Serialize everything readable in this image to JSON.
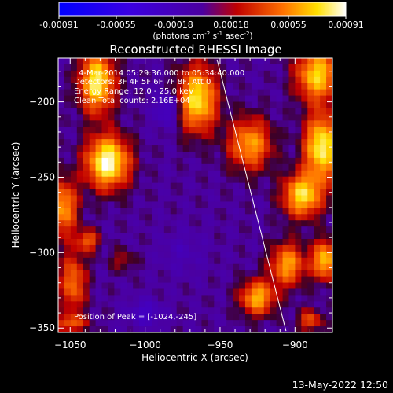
{
  "colorbar": {
    "ticks": [
      "-0.00091",
      "-0.00055",
      "-0.00018",
      "0.00018",
      "0.00055",
      "0.00091"
    ],
    "units_prefix": "(photons cm",
    "units_exp1": "-2",
    "units_mid": " s",
    "units_exp2": "-1",
    "units_asec": " asec",
    "units_exp3": "-2",
    "units_suffix": ")"
  },
  "info": {
    "time": "4-Mar-2014 05:29:36.000 to 05:34:40.000",
    "detectors": "Detectors: 3F 4F 5F 6F 7F 8F, Att 0",
    "energy": "Energy Range: 12.0 - 25.0 keV",
    "clean": "Clean    Total counts: 2.16E+04",
    "peak": "Position of Peak = [-1024,-245]"
  },
  "footer": {
    "timestamp": "13-May-2022 12:50"
  },
  "colors": {
    "background": "#000000",
    "foreground": "#ffffff",
    "negative_max": "#0000ff",
    "zero": "#4b00a0",
    "positive_max": "#ffffff"
  },
  "chart_data": {
    "type": "heatmap",
    "title": "Reconstructed RHESSI Image",
    "xlabel": "Heliocentric X (arcsec)",
    "ylabel": "Heliocentric Y (arcsec)",
    "xlim": [
      -1058,
      -875
    ],
    "ylim": [
      -353,
      -171
    ],
    "xticks": [
      -1050,
      -1000,
      -950,
      -900
    ],
    "yticks": [
      -350,
      -300,
      -250,
      -200
    ],
    "xtick_labels": [
      "−1050",
      "−1000",
      "−950",
      "−900"
    ],
    "ytick_labels": [
      "−350",
      "−300",
      "−250",
      "−200"
    ],
    "colorbar_range": [
      -0.00091,
      0.00091
    ],
    "limb_line": [
      [
        -952,
        -172
      ],
      [
        -906,
        -352
      ]
    ],
    "peak_position": [
      -1024,
      -245
    ],
    "sources": [
      {
        "x": -1032,
        "y": -187,
        "sx": 8,
        "sy": 14,
        "a": 0.00082
      },
      {
        "x": -1025,
        "y": -240,
        "sx": 10,
        "sy": 12,
        "a": 0.00091
      },
      {
        "x": -1055,
        "y": -270,
        "sx": 7,
        "sy": 13,
        "a": 0.0006
      },
      {
        "x": -1048,
        "y": -320,
        "sx": 6,
        "sy": 14,
        "a": 0.0005
      },
      {
        "x": -1038,
        "y": -292,
        "sx": 5,
        "sy": 5,
        "a": 0.00045
      },
      {
        "x": -1050,
        "y": -347,
        "sx": 8,
        "sy": 4,
        "a": 0.0004
      },
      {
        "x": -965,
        "y": -198,
        "sx": 9,
        "sy": 15,
        "a": 0.00078
      },
      {
        "x": -930,
        "y": -228,
        "sx": 10,
        "sy": 12,
        "a": 0.0006
      },
      {
        "x": -885,
        "y": -182,
        "sx": 10,
        "sy": 12,
        "a": 0.00072
      },
      {
        "x": -882,
        "y": -230,
        "sx": 8,
        "sy": 15,
        "a": 0.00085
      },
      {
        "x": -895,
        "y": -262,
        "sx": 9,
        "sy": 10,
        "a": 0.00075
      },
      {
        "x": -905,
        "y": -308,
        "sx": 8,
        "sy": 10,
        "a": 0.0006
      },
      {
        "x": -880,
        "y": -305,
        "sx": 6,
        "sy": 9,
        "a": 0.0007
      },
      {
        "x": -925,
        "y": -330,
        "sx": 8,
        "sy": 8,
        "a": 0.00065
      },
      {
        "x": -890,
        "y": -345,
        "sx": 6,
        "sy": 5,
        "a": 0.0004
      },
      {
        "x": -985,
        "y": -205,
        "sx": 6,
        "sy": 8,
        "a": -0.0003
      },
      {
        "x": -1000,
        "y": -340,
        "sx": 8,
        "sy": 6,
        "a": -0.00025
      },
      {
        "x": -975,
        "y": -300,
        "sx": 10,
        "sy": 10,
        "a": -0.00012
      },
      {
        "x": -1015,
        "y": -305,
        "sx": 6,
        "sy": 5,
        "a": 0.00022
      }
    ]
  }
}
